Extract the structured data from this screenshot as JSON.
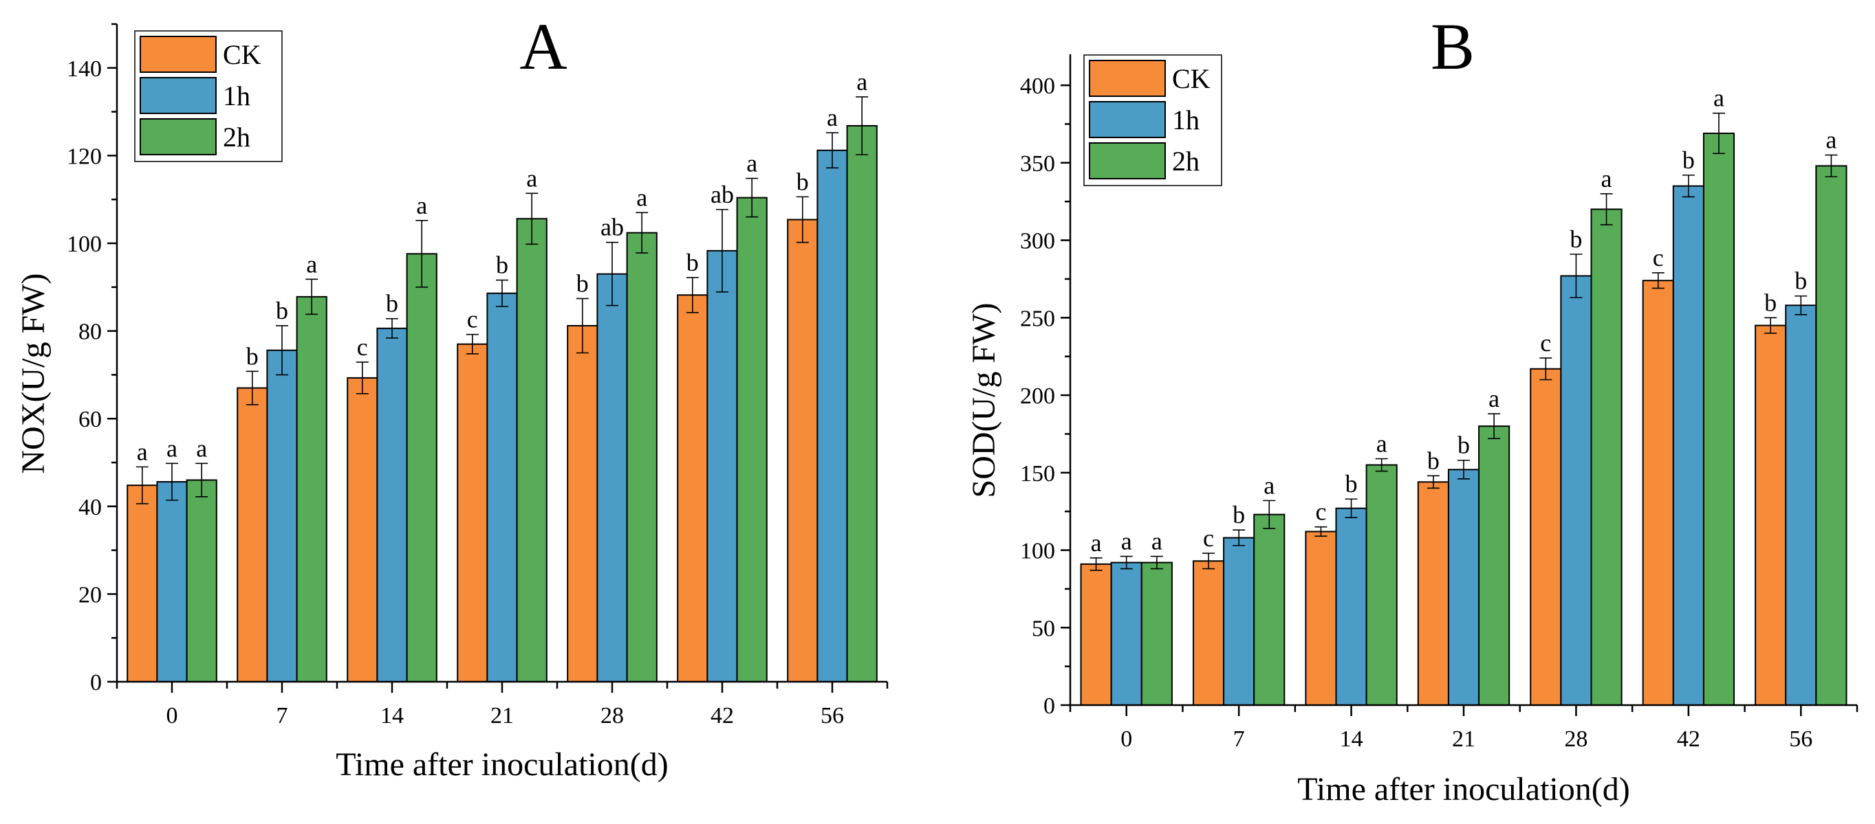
{
  "chart_data": [
    {
      "type": "bar",
      "panel_label": "A",
      "categories": [
        "0",
        "7",
        "14",
        "21",
        "28",
        "42",
        "56"
      ],
      "series": [
        {
          "name": "CK",
          "color": "#F68C3A",
          "values": [
            44.8,
            67.0,
            69.3,
            77.0,
            81.2,
            88.2,
            105.4
          ],
          "errors": [
            4.2,
            3.8,
            3.6,
            2.2,
            6.2,
            4.0,
            5.2
          ],
          "letters": [
            "a",
            "b",
            "c",
            "c",
            "b",
            "b",
            "b"
          ]
        },
        {
          "name": "1h",
          "color": "#4C9CC8",
          "values": [
            45.6,
            75.6,
            80.6,
            88.6,
            93.0,
            98.3,
            121.2
          ],
          "errors": [
            4.2,
            5.6,
            2.2,
            3.0,
            7.2,
            9.4,
            4.0
          ],
          "letters": [
            "a",
            "b",
            "b",
            "b",
            "ab",
            "ab",
            "a"
          ]
        },
        {
          "name": "2h",
          "color": "#58AC58",
          "values": [
            46.0,
            87.8,
            97.6,
            105.6,
            102.4,
            110.4,
            126.8
          ],
          "errors": [
            3.8,
            4.0,
            7.6,
            5.8,
            4.6,
            4.4,
            6.6
          ],
          "letters": [
            "a",
            "a",
            "a",
            "a",
            "a",
            "a",
            "a"
          ]
        }
      ],
      "xlabel": "Time after inoculation(d)",
      "ylabel": "NOX(U/g FW)",
      "ylim": [
        0,
        150
      ],
      "yticks": [
        0,
        20,
        40,
        60,
        80,
        100,
        120,
        140
      ],
      "legend_position": "top-left"
    },
    {
      "type": "bar",
      "panel_label": "B",
      "categories": [
        "0",
        "7",
        "14",
        "21",
        "28",
        "42",
        "56"
      ],
      "series": [
        {
          "name": "CK",
          "color": "#F68C3A",
          "values": [
            91,
            93,
            112,
            144,
            217,
            274,
            245
          ],
          "errors": [
            4,
            5,
            3,
            4,
            7,
            5,
            5
          ],
          "letters": [
            "a",
            "c",
            "c",
            "b",
            "c",
            "c",
            "b"
          ]
        },
        {
          "name": "1h",
          "color": "#4C9CC8",
          "values": [
            92,
            108,
            127,
            152,
            277,
            335,
            258
          ],
          "errors": [
            4,
            5,
            6,
            6,
            14,
            7,
            6
          ],
          "letters": [
            "a",
            "b",
            "b",
            "b",
            "b",
            "b",
            "b"
          ]
        },
        {
          "name": "2h",
          "color": "#58AC58",
          "values": [
            92,
            123,
            155,
            180,
            320,
            369,
            348
          ],
          "errors": [
            4,
            9,
            4,
            8,
            10,
            13,
            7
          ],
          "letters": [
            "a",
            "a",
            "a",
            "a",
            "a",
            "a",
            "a"
          ]
        }
      ],
      "xlabel": "Time after inoculation(d)",
      "ylabel": "SOD(U/g FW)",
      "ylim": [
        0,
        420
      ],
      "yticks": [
        0,
        50,
        100,
        150,
        200,
        250,
        300,
        350,
        400
      ],
      "legend_position": "top-left"
    }
  ]
}
